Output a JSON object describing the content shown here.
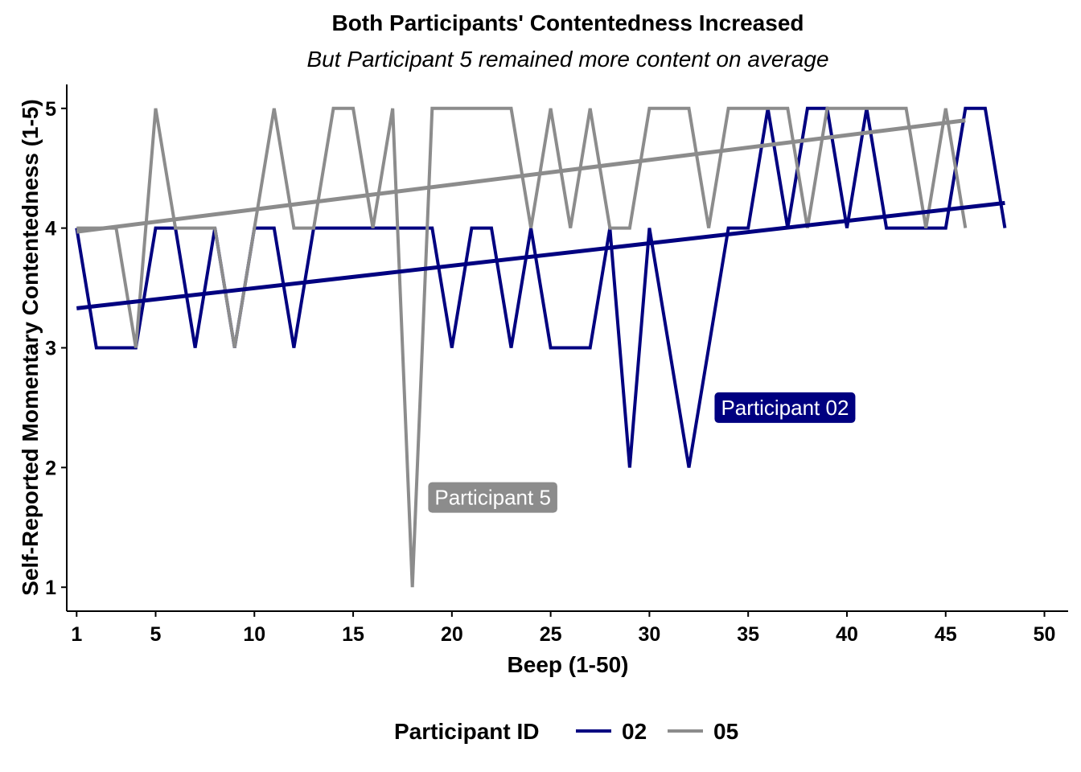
{
  "chart_data": {
    "type": "line",
    "title": "Both Participants' Contentedness Increased",
    "subtitle": "But Participant 5 remained more content on average",
    "xlabel": "Beep (1-50)",
    "ylabel": "Self-Reported Momentary Contentedness (1-5)",
    "xlim": [
      0.5,
      51.2
    ],
    "ylim": [
      0.8,
      5.2
    ],
    "xticks": [
      1,
      5,
      10,
      15,
      20,
      25,
      30,
      35,
      40,
      45,
      50
    ],
    "yticks": [
      1,
      2,
      3,
      4,
      5
    ],
    "grid": false,
    "legend": {
      "title": "Participant ID",
      "position": "bottom",
      "entries": [
        "02",
        "05"
      ]
    },
    "series": [
      {
        "name": "02",
        "color": "#000080",
        "x": [
          1,
          2,
          3,
          4,
          5,
          6,
          7,
          8,
          9,
          10,
          11,
          12,
          13,
          14,
          15,
          16,
          17,
          18,
          19,
          20,
          21,
          22,
          23,
          24,
          25,
          26,
          27,
          28,
          29,
          30,
          31,
          32,
          33,
          34,
          35,
          36,
          37,
          38,
          39,
          40,
          41,
          42,
          43,
          44,
          45,
          46,
          47,
          48
        ],
        "y": [
          4,
          3,
          3,
          3,
          4,
          4,
          3,
          4,
          3,
          4,
          4,
          3,
          4,
          4,
          4,
          4,
          4,
          4,
          4,
          3,
          4,
          4,
          3,
          4,
          3,
          3,
          3,
          4,
          2,
          4,
          3,
          2,
          3,
          4,
          4,
          5,
          4,
          5,
          5,
          4,
          5,
          4,
          4,
          4,
          4,
          5,
          5,
          4
        ],
        "trend": {
          "x": [
            1,
            48
          ],
          "y": [
            3.33,
            4.21
          ]
        }
      },
      {
        "name": "05",
        "color": "#8c8c8c",
        "x": [
          1,
          2,
          3,
          4,
          5,
          6,
          7,
          8,
          9,
          10,
          11,
          12,
          13,
          14,
          15,
          16,
          17,
          18,
          19,
          20,
          21,
          22,
          23,
          24,
          25,
          26,
          27,
          28,
          29,
          30,
          31,
          32,
          33,
          34,
          35,
          36,
          37,
          38,
          39,
          40,
          41,
          42,
          43,
          44,
          45,
          46
        ],
        "y": [
          4,
          4,
          4,
          3,
          5,
          4,
          4,
          4,
          3,
          4,
          5,
          4,
          4,
          5,
          5,
          4,
          5,
          1,
          5,
          5,
          5,
          5,
          5,
          4,
          5,
          4,
          5,
          4,
          4,
          5,
          5,
          5,
          4,
          5,
          5,
          5,
          5,
          4,
          5,
          5,
          5,
          5,
          5,
          4,
          5,
          4
        ],
        "trend": {
          "x": [
            1,
            46
          ],
          "y": [
            3.97,
            4.9
          ]
        }
      }
    ],
    "annotations": [
      {
        "text": "Participant 02",
        "series": "02",
        "x": 33.3,
        "y": 2.5,
        "fill": "#000080"
      },
      {
        "text": "Participant 5",
        "series": "05",
        "x": 18.8,
        "y": 1.75,
        "fill": "#8c8c8c"
      }
    ]
  }
}
